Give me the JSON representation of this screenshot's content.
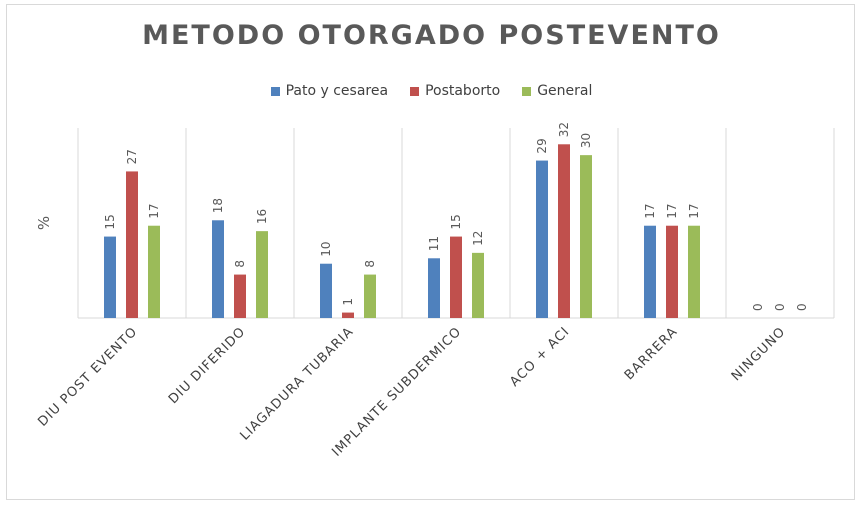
{
  "chart_data": {
    "type": "bar",
    "title": "METODO OTORGADO POSTEVENTO",
    "ylabel": "%",
    "categories": [
      "DIU POST EVENTO",
      "DIU DIFERIDO",
      "LIAGADURA TUBARIA",
      "IMPLANTE SUBDERMICO",
      "ACO + ACI",
      "BARRERA",
      "NINGUNO"
    ],
    "series": [
      {
        "name": "Pato y cesarea",
        "color": "#4f81bd",
        "values": [
          15,
          18,
          10,
          11,
          29,
          17,
          0
        ]
      },
      {
        "name": "Postaborto",
        "color": "#c0504d",
        "values": [
          27,
          8,
          1,
          15,
          32,
          17,
          0
        ]
      },
      {
        "name": "General",
        "color": "#9bbb59",
        "values": [
          17,
          16,
          8,
          12,
          30,
          17,
          0
        ]
      }
    ],
    "ylim": [
      0,
      35
    ],
    "grid": "vertical category separators",
    "legend_position": "top",
    "data_labels": true
  }
}
